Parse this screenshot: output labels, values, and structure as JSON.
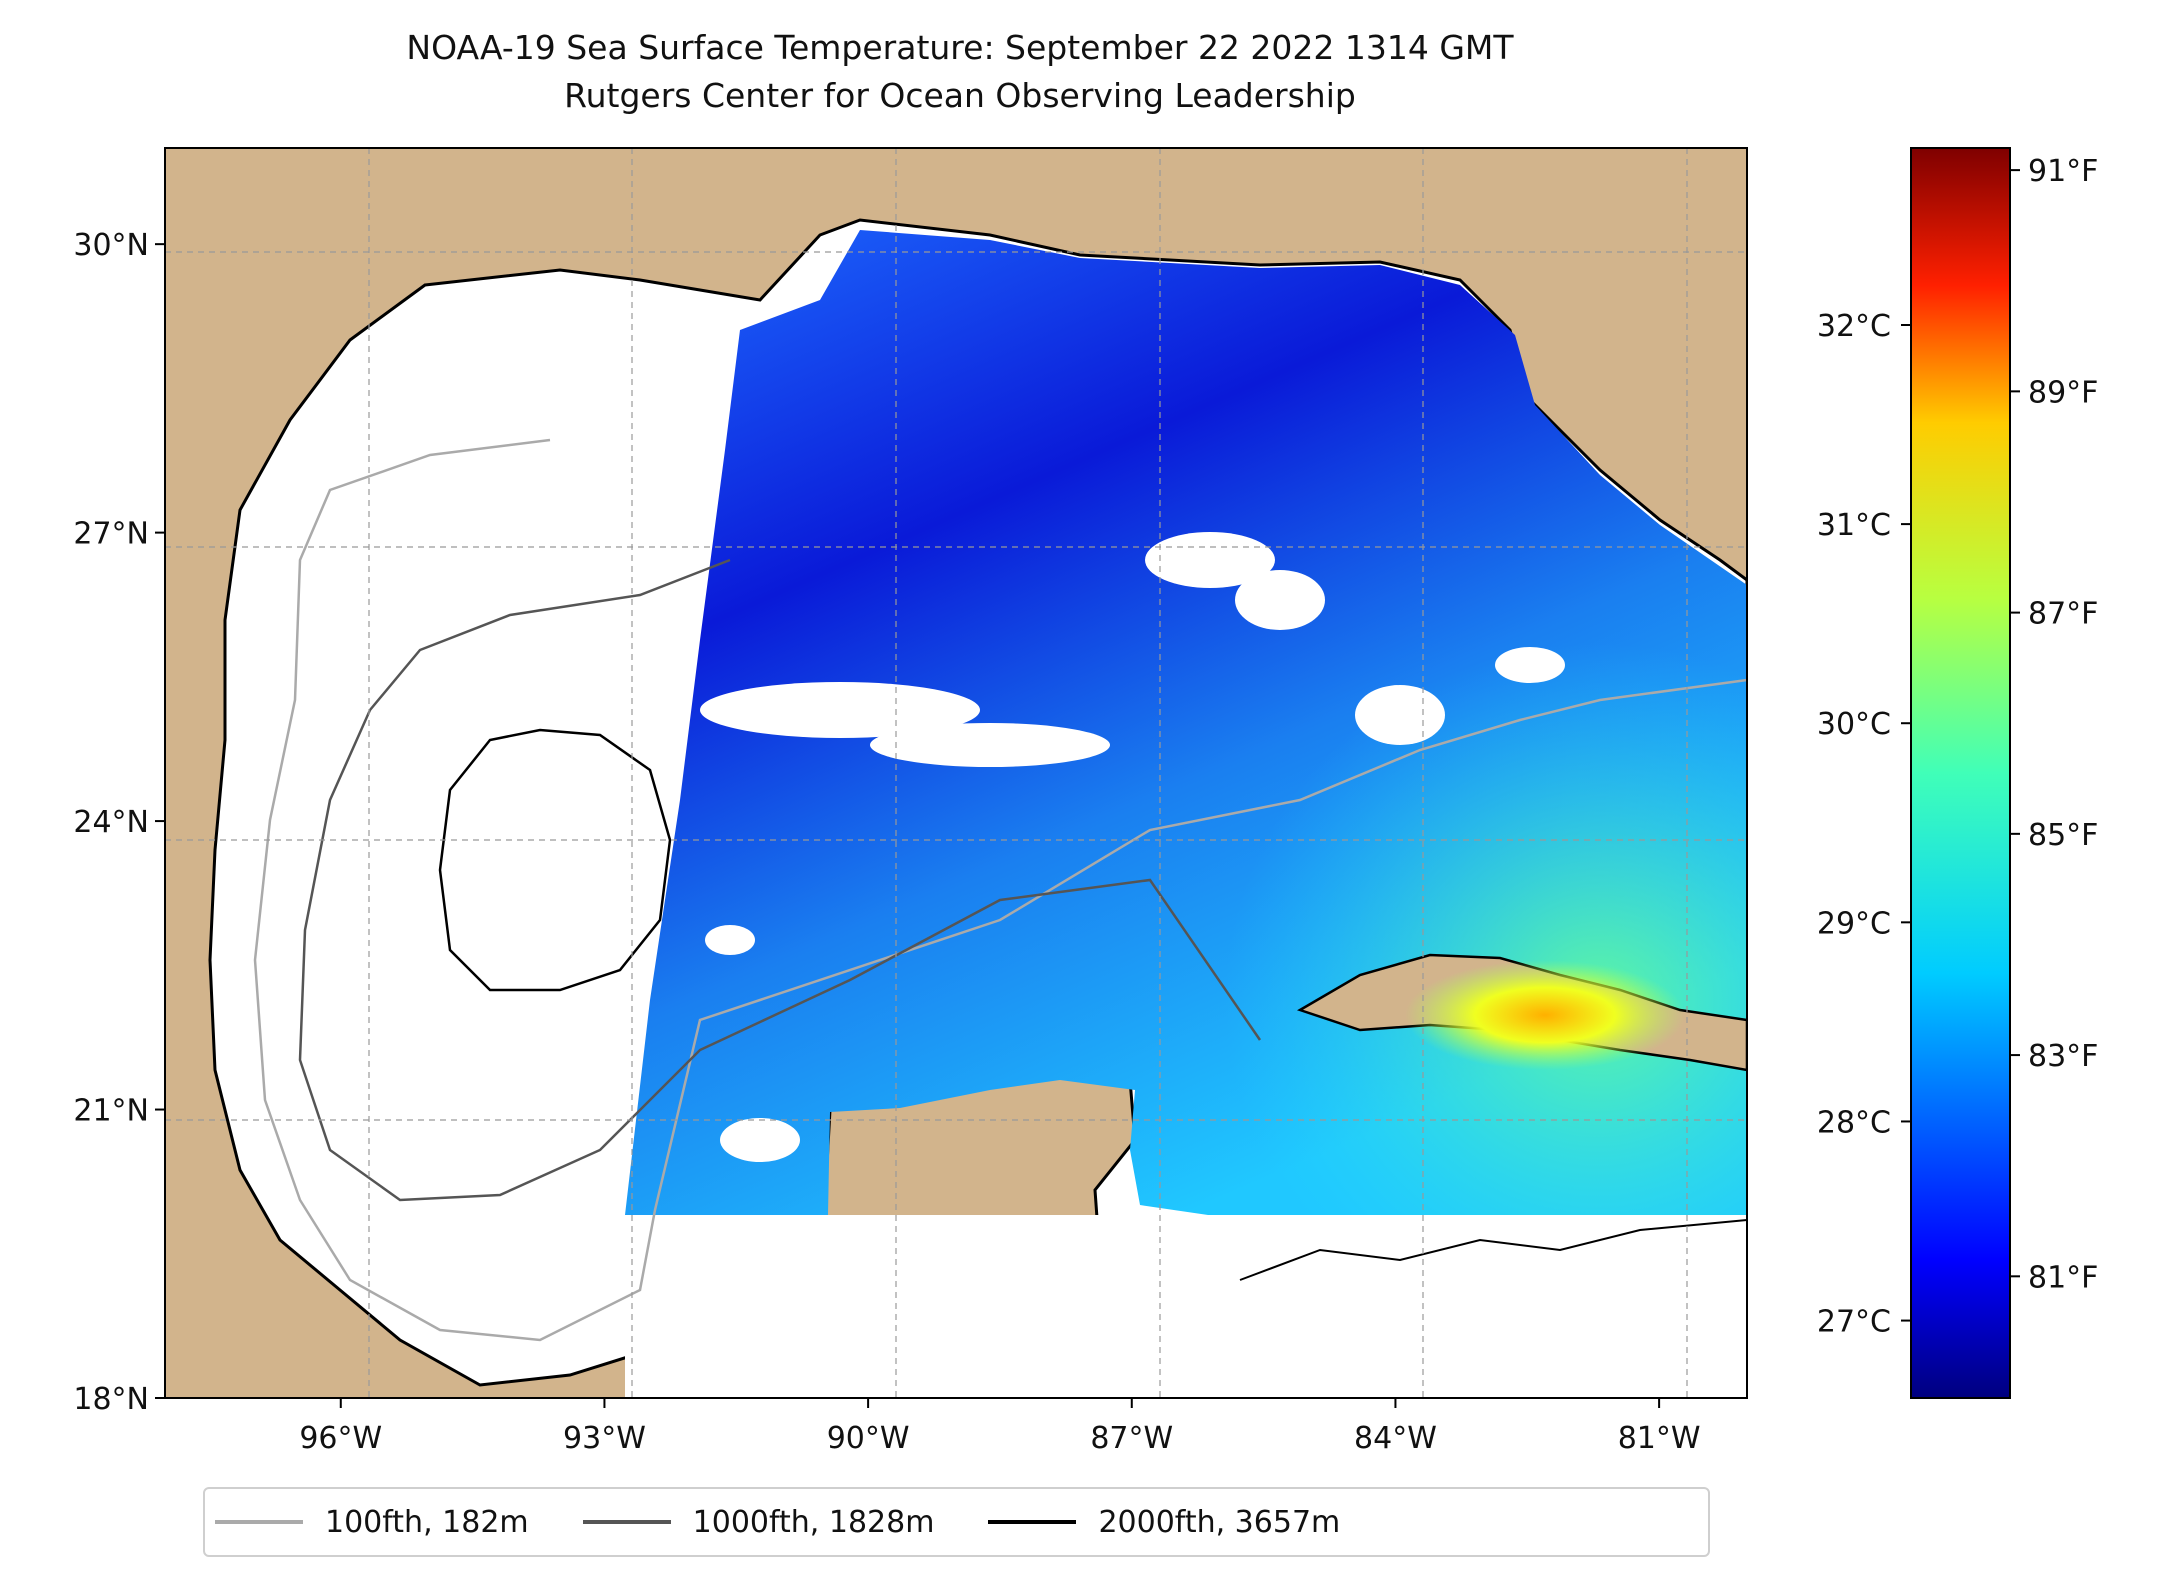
{
  "title": {
    "line1": "NOAA-19 Sea Surface Temperature: September 22 2022 1314 GMT",
    "line2": "Rutgers Center for Ocean Observing Leadership"
  },
  "map": {
    "lon_range": [
      -98,
      -80
    ],
    "lat_range": [
      18,
      31
    ],
    "lat_ticks": [
      {
        "value": 18,
        "label": "18°N"
      },
      {
        "value": 21,
        "label": "21°N"
      },
      {
        "value": 24,
        "label": "24°N"
      },
      {
        "value": 27,
        "label": "27°N"
      },
      {
        "value": 30,
        "label": "30°N"
      }
    ],
    "lon_ticks": [
      {
        "value": -96,
        "label": "96°W"
      },
      {
        "value": -93,
        "label": "93°W"
      },
      {
        "value": -90,
        "label": "90°W"
      },
      {
        "value": -87,
        "label": "87°W"
      },
      {
        "value": -84,
        "label": "84°W"
      },
      {
        "value": -81,
        "label": "81°W"
      }
    ],
    "gridlines": true,
    "land_color": "#d2b48c",
    "no_data_color": "#ffffff"
  },
  "colorbar": {
    "colormap": "jet",
    "fahrenheit_range": [
      79.9,
      91.2
    ],
    "fahrenheit_ticks": [
      {
        "value": 81,
        "label": "81°F"
      },
      {
        "value": 83,
        "label": "83°F"
      },
      {
        "value": 85,
        "label": "85°F"
      },
      {
        "value": 87,
        "label": "87°F"
      },
      {
        "value": 89,
        "label": "89°F"
      },
      {
        "value": 91,
        "label": "91°F"
      }
    ],
    "celsius_ticks": [
      {
        "value": 27,
        "label": "27°C"
      },
      {
        "value": 28,
        "label": "28°C"
      },
      {
        "value": 29,
        "label": "29°C"
      },
      {
        "value": 30,
        "label": "30°C"
      },
      {
        "value": 31,
        "label": "31°C"
      },
      {
        "value": 32,
        "label": "32°C"
      }
    ]
  },
  "legend": {
    "placement": "bottom-center",
    "items": [
      {
        "label": "100fth, 182m",
        "color": "#aaaaaa"
      },
      {
        "label": "1000fth, 1828m",
        "color": "#555555"
      },
      {
        "label": "2000fth, 3657m",
        "color": "#000000"
      }
    ]
  }
}
